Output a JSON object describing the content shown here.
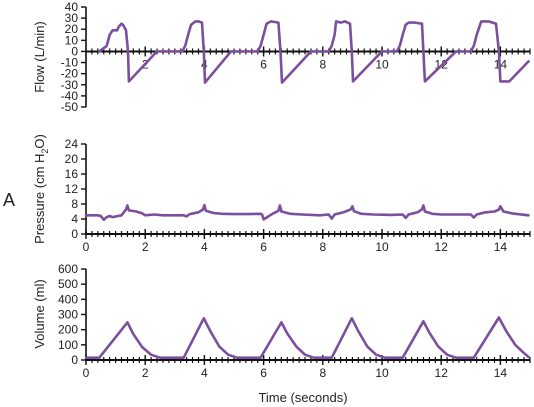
{
  "panel_letter": "A",
  "xlabel": "Time (seconds)",
  "style": {
    "line_color": "#7b4f9d",
    "axis_color": "#111111",
    "text_color": "#222222"
  },
  "chart_data": [
    {
      "type": "line",
      "id": "flow",
      "ylabel": "Flow (L/min)",
      "xlim": [
        0,
        15
      ],
      "ylim": [
        -50,
        40
      ],
      "x_axis_at": 0,
      "x_ticks": [
        2,
        4,
        6,
        8,
        10,
        12,
        14
      ],
      "y_ticks": [
        -50,
        -40,
        -30,
        -20,
        -10,
        0,
        10,
        20,
        30,
        40
      ],
      "grid": false,
      "series": [
        {
          "x": [
            0.45,
            0.7,
            0.8,
            0.9,
            1.05,
            1.1,
            1.2,
            1.25,
            1.35,
            1.42,
            1.45,
            2.4,
            3.25,
            3.35,
            3.45,
            3.55,
            3.7,
            3.8,
            3.92,
            3.98,
            4.02,
            4.9,
            5.8,
            5.9,
            6.0,
            6.1,
            6.25,
            6.5,
            6.57,
            6.62,
            7.6,
            8.2,
            8.3,
            8.4,
            8.45,
            8.6,
            8.75,
            8.92,
            8.98,
            9.02,
            10.0,
            10.5,
            10.6,
            10.7,
            10.8,
            10.9,
            11.1,
            11.35,
            11.4,
            11.45,
            12.5,
            13.0,
            13.1,
            13.2,
            13.35,
            13.6,
            13.85,
            13.95,
            14.0,
            14.3,
            14.95
          ],
          "y": [
            0,
            5,
            15,
            19,
            19,
            22,
            25,
            24,
            19,
            0,
            -27,
            0,
            0,
            5,
            15,
            24,
            27,
            27,
            26,
            0,
            -28,
            0,
            0,
            5,
            15,
            25,
            27,
            26,
            0,
            -28,
            0,
            0,
            5,
            15,
            27,
            26,
            27,
            25,
            0,
            -27,
            0,
            0,
            5,
            15,
            24,
            26,
            26,
            25,
            0,
            -27,
            0,
            0,
            5,
            15,
            27,
            27,
            25,
            0,
            -27,
            -27,
            -9
          ]
        }
      ]
    },
    {
      "type": "line",
      "id": "pressure",
      "ylabel": "Pressure (cm H",
      "ylabel_sub": "2",
      "ylabel_end": "O)",
      "xlim": [
        0,
        15
      ],
      "ylim": [
        0,
        24
      ],
      "x_ticks": [
        0,
        2,
        4,
        6,
        8,
        10,
        12,
        14
      ],
      "y_ticks": [
        0,
        4,
        8,
        12,
        16,
        20,
        24
      ],
      "grid": false,
      "series": [
        {
          "x": [
            0,
            0.4,
            0.5,
            0.6,
            0.7,
            0.8,
            0.9,
            1.2,
            1.35,
            1.4,
            1.45,
            1.7,
            1.9,
            2.0,
            2.3,
            2.6,
            3.0,
            3.3,
            3.4,
            3.5,
            3.8,
            3.95,
            4.0,
            4.05,
            4.3,
            4.6,
            5.0,
            5.5,
            5.9,
            5.95,
            6.0,
            6.3,
            6.5,
            6.55,
            6.6,
            6.9,
            7.3,
            7.9,
            8.2,
            8.3,
            8.4,
            8.7,
            8.95,
            9.0,
            9.05,
            9.3,
            9.7,
            10.3,
            10.7,
            10.8,
            10.9,
            11.2,
            11.35,
            11.4,
            11.45,
            11.7,
            12.0,
            12.6,
            13.0,
            13.1,
            13.2,
            13.5,
            13.8,
            13.95,
            14.0,
            14.1,
            14.4,
            14.95
          ],
          "y": [
            5,
            5,
            4.8,
            3.8,
            4.5,
            4.8,
            4.5,
            5,
            6.5,
            7.6,
            6.3,
            6,
            5.5,
            5,
            5.2,
            5,
            5,
            5,
            4.7,
            5.3,
            5.8,
            6.5,
            7.7,
            6.2,
            5.6,
            5.4,
            5.3,
            5.3,
            5.4,
            5.2,
            3.9,
            5.4,
            6.2,
            7.6,
            6.0,
            5.4,
            5.2,
            5.0,
            5.2,
            4.1,
            5.2,
            5.8,
            6.6,
            7.4,
            6.1,
            5.4,
            5.2,
            5.1,
            5.2,
            4.3,
            5.2,
            5.8,
            6.6,
            7.6,
            6.0,
            5.4,
            5.2,
            5.2,
            5.2,
            4.4,
            5.2,
            5.8,
            6.0,
            6.5,
            7.4,
            6.0,
            5.5,
            5.0
          ]
        }
      ]
    },
    {
      "type": "line",
      "id": "volume",
      "ylabel": "Volume (ml)",
      "xlim": [
        0,
        15
      ],
      "ylim": [
        0,
        600
      ],
      "x_ticks": [
        0,
        2,
        4,
        6,
        8,
        10,
        12,
        14
      ],
      "y_ticks": [
        0,
        100,
        200,
        300,
        400,
        500,
        600
      ],
      "grid": false,
      "series": [
        {
          "x": [
            0,
            0.45,
            1.4,
            1.6,
            1.9,
            2.2,
            2.5,
            3.3,
            3.98,
            4.2,
            4.5,
            4.8,
            5.1,
            5.9,
            6.6,
            6.8,
            7.1,
            7.4,
            7.7,
            8.3,
            8.98,
            9.2,
            9.5,
            9.8,
            10.1,
            10.7,
            11.4,
            11.6,
            11.9,
            12.2,
            12.5,
            13.1,
            13.95,
            14.2,
            14.5,
            14.8,
            14.95
          ],
          "y": [
            15,
            15,
            248,
            170,
            85,
            35,
            15,
            15,
            275,
            190,
            90,
            35,
            15,
            15,
            248,
            175,
            90,
            35,
            15,
            15,
            275,
            190,
            90,
            35,
            15,
            15,
            255,
            180,
            90,
            35,
            15,
            15,
            280,
            190,
            100,
            45,
            20
          ]
        }
      ]
    }
  ]
}
